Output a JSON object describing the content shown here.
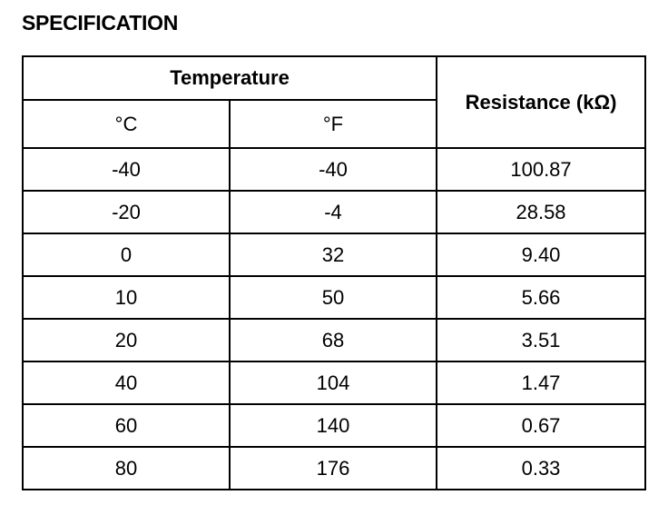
{
  "title": "SPECIFICATION",
  "table": {
    "header": {
      "group": "Temperature",
      "columns": [
        "°C",
        "°F"
      ],
      "resistance": "Resistance (kΩ)"
    },
    "rows": [
      [
        "-40",
        "-40",
        "100.87"
      ],
      [
        "-20",
        "-4",
        "28.58"
      ],
      [
        "0",
        "32",
        "9.40"
      ],
      [
        "10",
        "50",
        "5.66"
      ],
      [
        "20",
        "68",
        "3.51"
      ],
      [
        "40",
        "104",
        "1.47"
      ],
      [
        "60",
        "140",
        "0.67"
      ],
      [
        "80",
        "176",
        "0.33"
      ]
    ]
  }
}
